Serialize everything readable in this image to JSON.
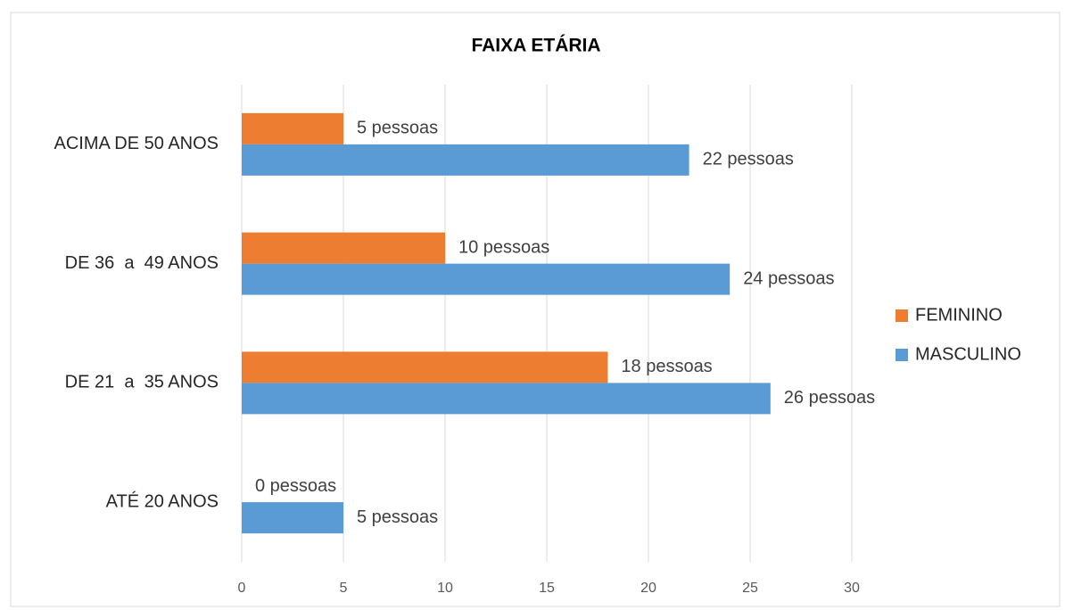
{
  "chart_data": {
    "type": "bar",
    "orientation": "horizontal",
    "title": "FAIXA ETÁRIA",
    "categories": [
      "ATÉ 20 ANOS",
      "DE 21  a  35 ANOS",
      "DE 36  a  49 ANOS",
      "ACIMA DE 50 ANOS"
    ],
    "series": [
      {
        "name": "FEMININO",
        "color": "#ed7d31",
        "values": [
          0,
          18,
          10,
          5
        ],
        "value_labels": [
          "0 pessoas",
          "18 pessoas",
          "10 pessoas",
          "5 pessoas"
        ]
      },
      {
        "name": "MASCULINO",
        "color": "#5b9bd5",
        "values": [
          5,
          26,
          24,
          22
        ],
        "value_labels": [
          "5 pessoas",
          "26 pessoas",
          "24 pessoas",
          "22 pessoas"
        ]
      }
    ],
    "xlim": [
      0,
      30
    ],
    "xticks": [
      0,
      5,
      10,
      15,
      20,
      25,
      30
    ],
    "grid": true,
    "legend": "right"
  }
}
